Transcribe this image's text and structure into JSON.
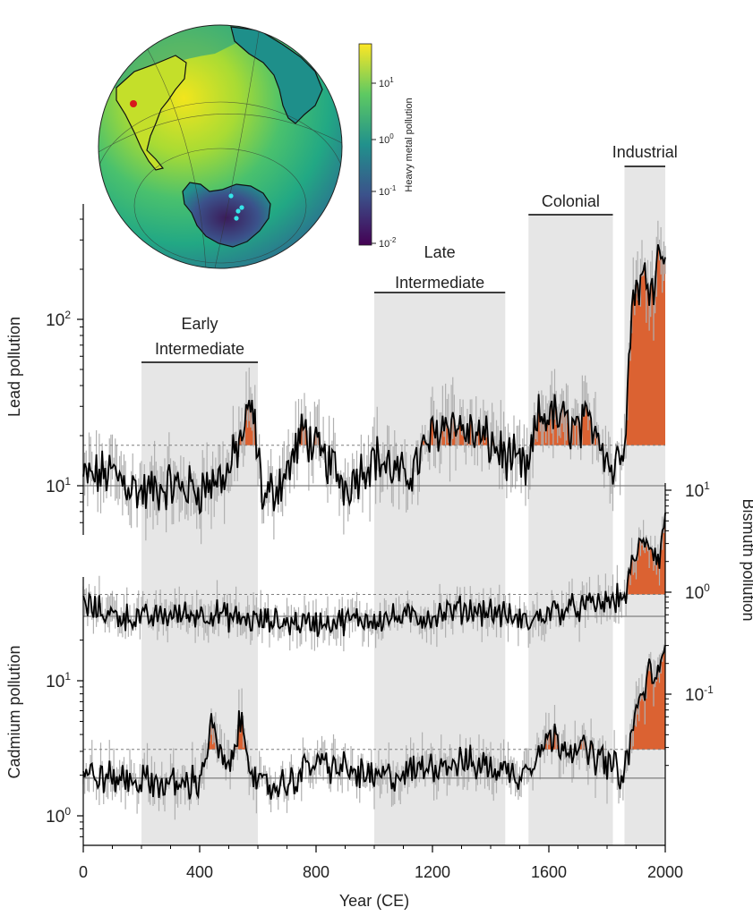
{
  "chart_data": {
    "type": "line",
    "x_range": [
      0,
      2000
    ],
    "xlabel": "Year (CE)",
    "x_ticks": [
      0,
      400,
      800,
      1200,
      1600,
      2000
    ],
    "x_tick_labels": [
      "0",
      "400",
      "800",
      "1200",
      "1600",
      "2000"
    ],
    "periods": [
      {
        "name_lines": [
          "Early",
          "Intermediate"
        ],
        "start": 200,
        "end": 600
      },
      {
        "name_lines": [
          "Late",
          "Intermediate"
        ],
        "start": 1000,
        "end": 1450
      },
      {
        "name_lines": [
          "Colonial"
        ],
        "start": 1530,
        "end": 1820
      },
      {
        "name_lines": [
          "Industrial"
        ],
        "start": 1860,
        "end": 2000
      }
    ],
    "panels": [
      {
        "id": "lead",
        "ylabel": "Lead pollution",
        "y_axis_side": "left",
        "scale": "log",
        "tick_labels": [
          {
            "mantissa": "10",
            "exponent": "2",
            "value": 100
          },
          {
            "mantissa": "10",
            "exponent": "1",
            "value": 10
          }
        ],
        "baseline": 10,
        "threshold": 17.5,
        "anchors": [
          [
            0,
            11
          ],
          [
            100,
            12
          ],
          [
            200,
            9
          ],
          [
            300,
            10
          ],
          [
            400,
            9.5
          ],
          [
            500,
            12
          ],
          [
            580,
            30
          ],
          [
            620,
            8
          ],
          [
            700,
            12
          ],
          [
            760,
            22
          ],
          [
            800,
            16
          ],
          [
            860,
            13
          ],
          [
            900,
            10
          ],
          [
            1000,
            15
          ],
          [
            1100,
            11
          ],
          [
            1150,
            14
          ],
          [
            1200,
            20
          ],
          [
            1250,
            25
          ],
          [
            1300,
            22
          ],
          [
            1400,
            18
          ],
          [
            1450,
            15
          ],
          [
            1530,
            12
          ],
          [
            1560,
            25
          ],
          [
            1600,
            27
          ],
          [
            1700,
            22
          ],
          [
            1760,
            24
          ],
          [
            1820,
            12
          ],
          [
            1860,
            20
          ],
          [
            1890,
            150
          ],
          [
            1920,
            170
          ],
          [
            1960,
            180
          ],
          [
            1990,
            300
          ],
          [
            2000,
            200
          ]
        ],
        "noise_amplitude": 0.12
      },
      {
        "id": "bismuth",
        "ylabel": "Bismuth pollution",
        "y_axis_side": "right",
        "scale": "log",
        "tick_labels": [
          {
            "mantissa": "10",
            "exponent": "1",
            "value": 10
          },
          {
            "mantissa": "10",
            "exponent": "0",
            "value": 1
          },
          {
            "mantissa": "10",
            "exponent": "-1",
            "value": 0.1
          }
        ],
        "baseline": 0.58,
        "threshold": 0.95,
        "anchors": [
          [
            0,
            0.75
          ],
          [
            100,
            0.6
          ],
          [
            200,
            0.55
          ],
          [
            300,
            0.6
          ],
          [
            450,
            0.62
          ],
          [
            520,
            0.55
          ],
          [
            600,
            0.52
          ],
          [
            800,
            0.5
          ],
          [
            1000,
            0.55
          ],
          [
            1200,
            0.58
          ],
          [
            1300,
            0.68
          ],
          [
            1400,
            0.65
          ],
          [
            1530,
            0.5
          ],
          [
            1600,
            0.65
          ],
          [
            1700,
            0.7
          ],
          [
            1800,
            0.8
          ],
          [
            1860,
            0.9
          ],
          [
            1900,
            2.5
          ],
          [
            1940,
            3.2
          ],
          [
            1980,
            2.0
          ],
          [
            2000,
            6.0
          ]
        ],
        "noise_amplitude": 0.11
      },
      {
        "id": "cadmium",
        "ylabel": "Cadmium pollution",
        "y_axis_side": "left",
        "scale": "log",
        "tick_labels": [
          {
            "mantissa": "10",
            "exponent": "1",
            "value": 10
          },
          {
            "mantissa": "10",
            "exponent": "0",
            "value": 1
          }
        ],
        "baseline": 1.9,
        "threshold": 3.1,
        "anchors": [
          [
            0,
            2.0
          ],
          [
            100,
            1.9
          ],
          [
            200,
            1.8
          ],
          [
            300,
            1.7
          ],
          [
            400,
            1.8
          ],
          [
            440,
            4.5
          ],
          [
            500,
            2.0
          ],
          [
            540,
            5.0
          ],
          [
            600,
            1.6
          ],
          [
            700,
            1.7
          ],
          [
            760,
            2.2
          ],
          [
            800,
            2.5
          ],
          [
            900,
            2.2
          ],
          [
            1000,
            1.9
          ],
          [
            1100,
            2.0
          ],
          [
            1200,
            2.4
          ],
          [
            1300,
            2.5
          ],
          [
            1400,
            2.3
          ],
          [
            1500,
            2.0
          ],
          [
            1600,
            3.8
          ],
          [
            1700,
            3.2
          ],
          [
            1800,
            2.5
          ],
          [
            1860,
            2.0
          ],
          [
            1900,
            6.0
          ],
          [
            1950,
            12
          ],
          [
            1980,
            10
          ],
          [
            2000,
            18
          ]
        ],
        "noise_amplitude": 0.1
      }
    ],
    "inset_map": {
      "colorbar_label": "Heavy metal pollution",
      "colorbar_ticks": [
        {
          "mantissa": "10",
          "exponent": "1"
        },
        {
          "mantissa": "10",
          "exponent": "0"
        },
        {
          "mantissa": "10",
          "exponent": "-1"
        },
        {
          "mantissa": "10",
          "exponent": "-2"
        }
      ],
      "colormap": [
        "#440154",
        "#3b528b",
        "#21918c",
        "#5ec962",
        "#fde725"
      ],
      "source_marker_color": "#d7191c",
      "site_marker_color": "#35e4e8"
    },
    "colors": {
      "line": "#000000",
      "noise": "#b0b0b0",
      "fill": "#d9531e",
      "period_band": "#e6e6e6",
      "baseline": "#7f7f7f"
    }
  }
}
